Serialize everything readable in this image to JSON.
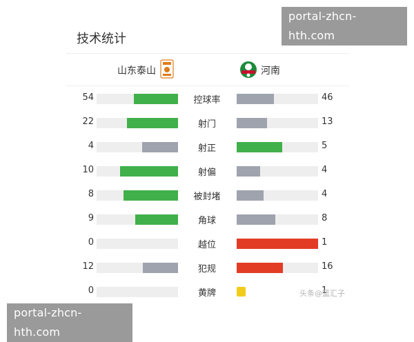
{
  "watermark": "portal-zhcn-hth.com",
  "title": "技术统计",
  "home_team": "山东泰山",
  "away_team": "河南",
  "source": "头条@篮汇子",
  "colors": {
    "green": "#40b04a",
    "gray": "#9ea3ae",
    "red": "#e23c25",
    "yellow": "#f2cc1c",
    "track": "#eeeeee"
  },
  "stats": [
    {
      "label": "控球率",
      "home": "54",
      "away": "46",
      "home_value": 54,
      "away_value": 46,
      "home_color": "green",
      "away_color": "gray"
    },
    {
      "label": "射门",
      "home": "22",
      "away": "13",
      "home_value": 22,
      "away_value": 13,
      "home_color": "green",
      "away_color": "gray"
    },
    {
      "label": "射正",
      "home": "4",
      "away": "5",
      "home_value": 4,
      "away_value": 5,
      "home_color": "gray",
      "away_color": "green"
    },
    {
      "label": "射偏",
      "home": "10",
      "away": "4",
      "home_value": 10,
      "away_value": 4,
      "home_color": "green",
      "away_color": "gray"
    },
    {
      "label": "被封堵",
      "home": "8",
      "away": "4",
      "home_value": 8,
      "away_value": 4,
      "home_color": "green",
      "away_color": "gray"
    },
    {
      "label": "角球",
      "home": "9",
      "away": "8",
      "home_value": 9,
      "away_value": 8,
      "home_color": "green",
      "away_color": "gray"
    },
    {
      "label": "越位",
      "home": "0",
      "away": "1",
      "home_value": 0,
      "away_value": 1,
      "home_color": "gray",
      "away_color": "red"
    },
    {
      "label": "犯规",
      "home": "12",
      "away": "16",
      "home_value": 12,
      "away_value": 16,
      "home_color": "gray",
      "away_color": "red"
    },
    {
      "label": "黄牌",
      "home": "0",
      "away": "1",
      "home_value": 0,
      "away_value": 1,
      "home_color": "none",
      "away_color": "yellow-card"
    }
  ]
}
